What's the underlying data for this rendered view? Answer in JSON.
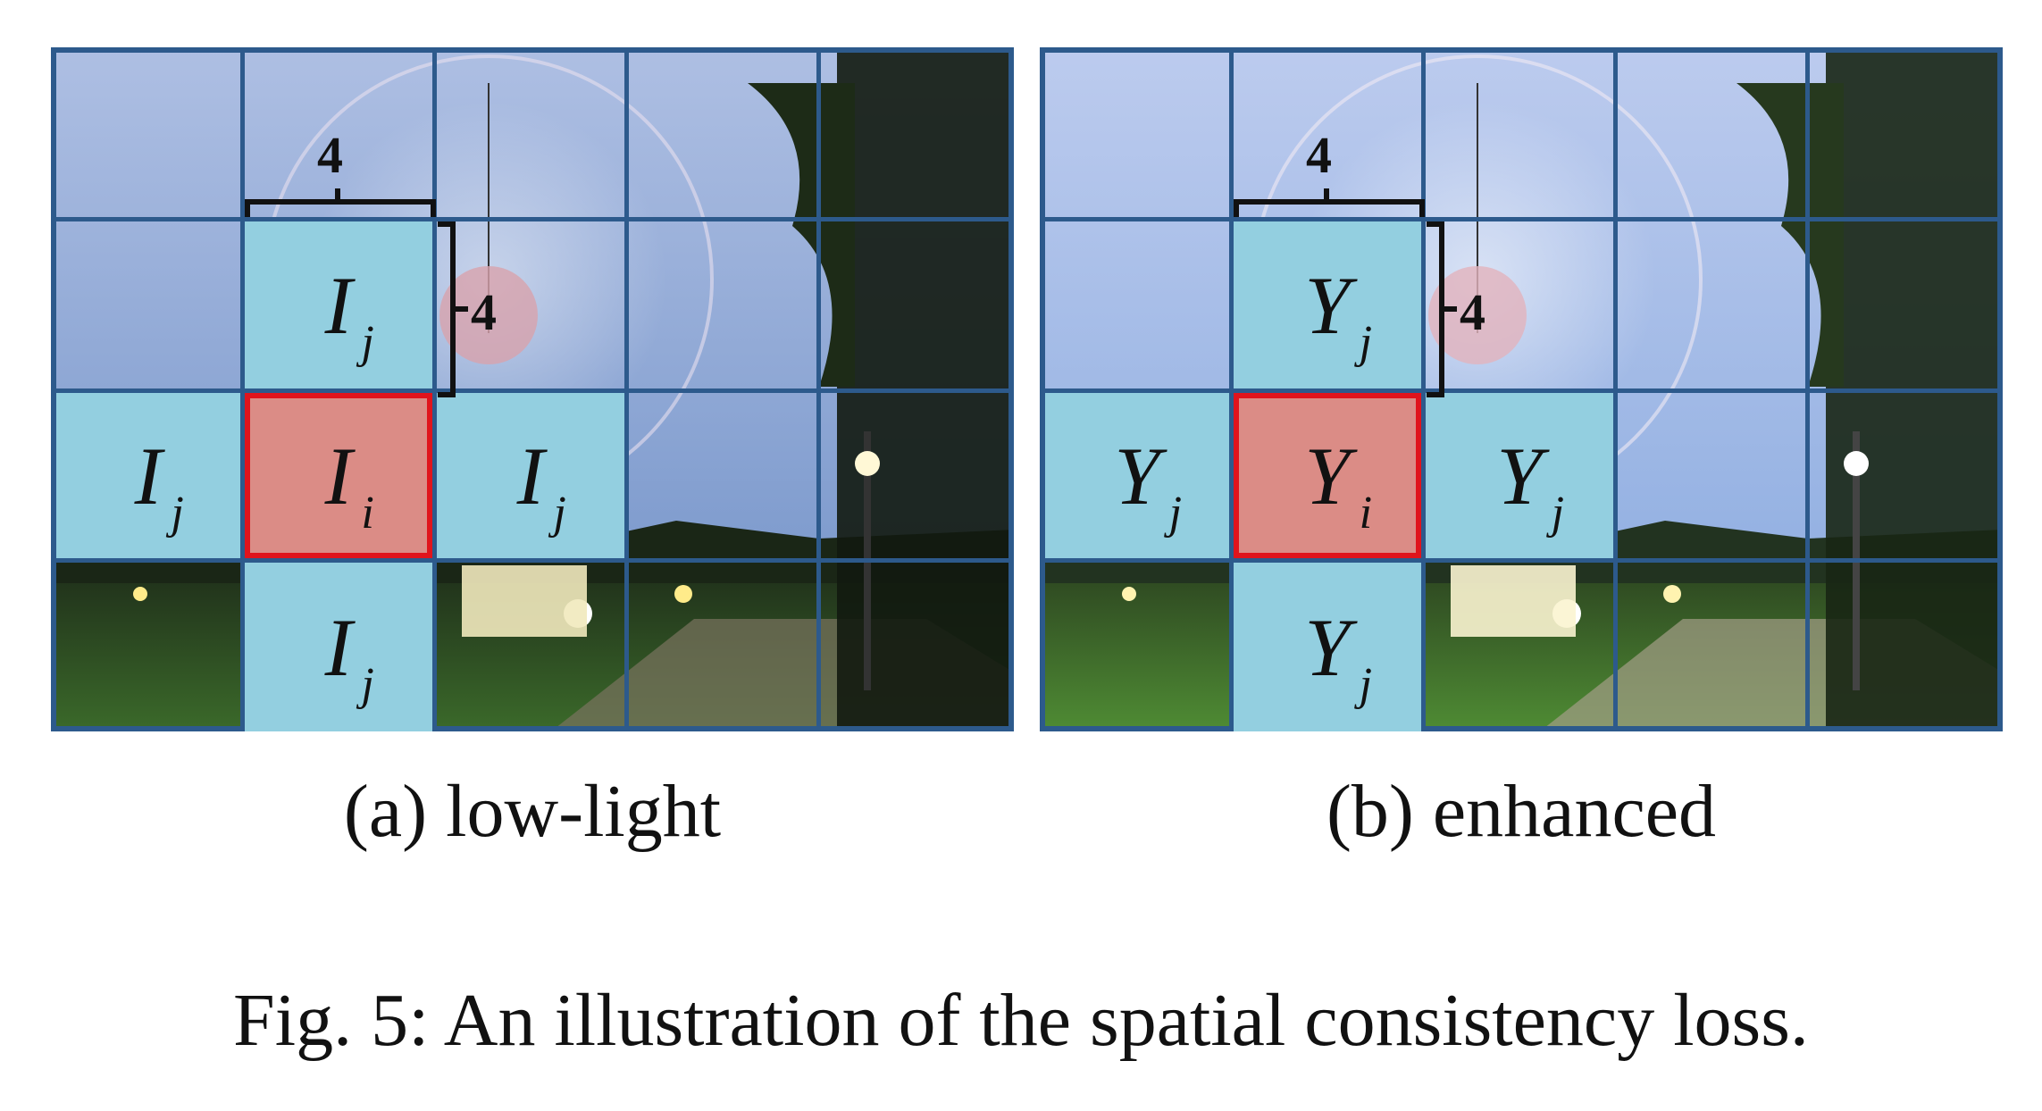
{
  "figure": {
    "caption": "Fig. 5: An illustration of the spatial consistency loss."
  },
  "panels": [
    {
      "id": "a",
      "label": "(a) low-light",
      "symbol": "I",
      "neighbor_subscript": "j",
      "center_subscript": "i",
      "patch_width": "4",
      "patch_height": "4",
      "colors": {
        "sky_top": "#aebfe3",
        "sky_bottom": "#7f9ecf",
        "ground": "#2e4a22",
        "tree": "#141d12"
      }
    },
    {
      "id": "b",
      "label": "(b) enhanced",
      "symbol": "Y",
      "neighbor_subscript": "j",
      "center_subscript": "i",
      "patch_width": "4",
      "patch_height": "4",
      "colors": {
        "sky_top": "#bccbee",
        "sky_bottom": "#93b2e2",
        "ground": "#3f6a2c",
        "tree": "#1a2918"
      }
    }
  ],
  "tile_colors": {
    "neighbor": "#93cfe0",
    "center": "#db8c86",
    "center_border": "#e0141c",
    "grid": "#2d5a8c"
  }
}
